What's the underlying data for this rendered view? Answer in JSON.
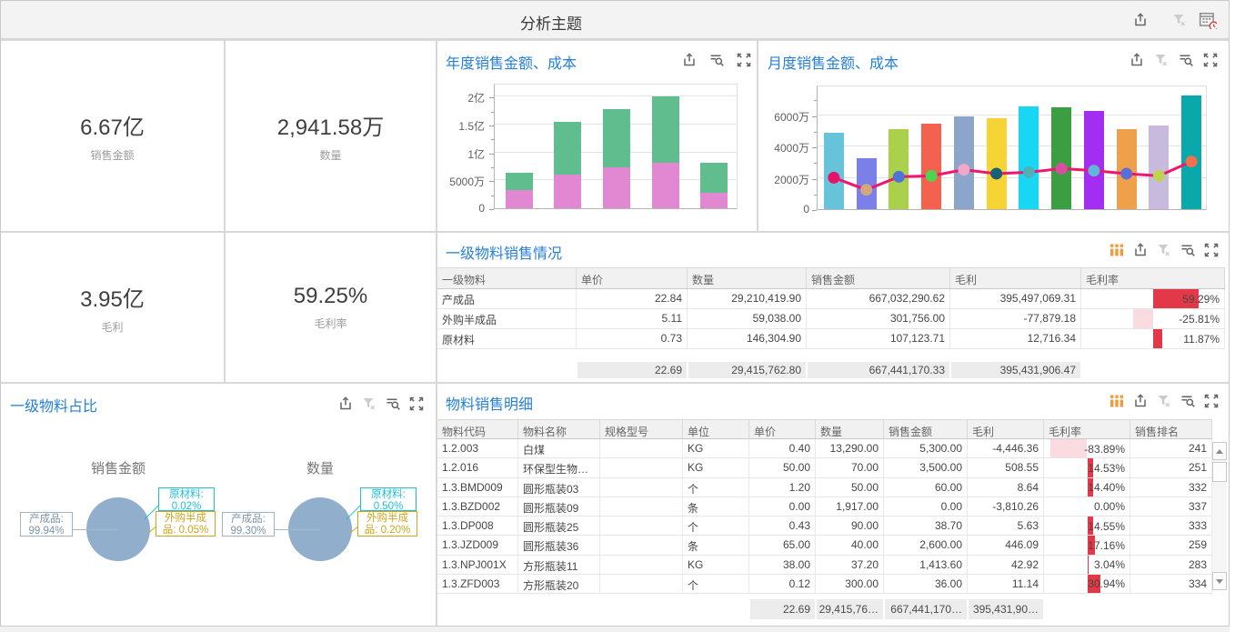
{
  "header": {
    "title": "分析主题"
  },
  "kpis": [
    {
      "value": "6.67亿",
      "label": "销售金额"
    },
    {
      "value": "2,941.58万",
      "label": "数量"
    },
    {
      "value": "3.95亿",
      "label": "毛利"
    },
    {
      "value": "59.25%",
      "label": "毛利率"
    }
  ],
  "chart_data": [
    {
      "type": "stacked-bar",
      "title": "年度销售金额、成本",
      "unit": "亿",
      "ylim": [
        0,
        2.25
      ],
      "yticks": [
        {
          "label": "0",
          "v": 0
        },
        {
          "label": "5000万",
          "v": 0.5
        },
        {
          "label": "1亿",
          "v": 1
        },
        {
          "label": "1.5亿",
          "v": 1.5
        },
        {
          "label": "2亿",
          "v": 2
        }
      ],
      "series": [
        {
          "name": "series-bottom",
          "color": "#e287d2",
          "values": [
            0.32,
            0.6,
            0.74,
            0.82,
            0.28
          ]
        },
        {
          "name": "series-top",
          "color": "#5fbd8e",
          "values": [
            0.32,
            0.94,
            1.03,
            1.19,
            0.53
          ]
        }
      ]
    },
    {
      "type": "bar-line",
      "title": "月度销售金额、成本",
      "unit": "万",
      "ylim": [
        0,
        8000
      ],
      "yticks": [
        {
          "label": "0",
          "v": 0
        },
        {
          "label": "2000万",
          "v": 2000
        },
        {
          "label": "4000万",
          "v": 4000
        },
        {
          "label": "6000万",
          "v": 6000
        }
      ],
      "bars": {
        "values": [
          4890,
          3250,
          5080,
          5470,
          5890,
          5800,
          6570,
          6490,
          6240,
          5100,
          5330,
          7260
        ],
        "colors": [
          "#66c3da",
          "#7a80e8",
          "#abd14c",
          "#f4614f",
          "#8ba6ca",
          "#f7d435",
          "#19d6f4",
          "#3b9e42",
          "#a32ef2",
          "#efa04a",
          "#c8badd",
          "#08a8ab"
        ]
      },
      "line": {
        "color": "#f2156d",
        "values": [
          2120,
          1350,
          2180,
          2240,
          2630,
          2380,
          2470,
          2700,
          2570,
          2380,
          2240,
          3150
        ],
        "dot_colors": [
          "#e8126b",
          "#d4a878",
          "#4f74d9",
          "#4fd44f",
          "#f0a8c8",
          "#1b5e78",
          "#4fb0b8",
          "#d94fa0",
          "#5fb8d8",
          "#5c6cd9",
          "#bcd44f",
          "#f07050"
        ]
      }
    },
    {
      "type": "pie",
      "title": "一级物料占比",
      "pie_color": "#91aecd",
      "pies": [
        {
          "name": "销售金额",
          "slices": [
            {
              "label": "产成品",
              "pct": "99.94%"
            },
            {
              "label": "原材料",
              "pct": "0.02%"
            },
            {
              "label": "外购半成品",
              "pct": "0.05%"
            }
          ]
        },
        {
          "name": "数量",
          "slices": [
            {
              "label": "产成品",
              "pct": "99.30%"
            },
            {
              "label": "原材料",
              "pct": "0.50%"
            },
            {
              "label": "外购半成品",
              "pct": "0.20%"
            }
          ]
        }
      ]
    }
  ],
  "table1": {
    "title": "一级物料销售情况",
    "columns": [
      "一级物料",
      "单价",
      "数量",
      "销售金额",
      "毛利",
      "毛利率"
    ],
    "rows": [
      [
        "产成品",
        "22.84",
        "29,210,419.90",
        "667,032,290.62",
        "395,497,069.31",
        "59.29%"
      ],
      [
        "外购半成品",
        "5.11",
        "59,038.00",
        "301,756.00",
        "-77,879.18",
        "-25.81%"
      ],
      [
        "原材料",
        "0.73",
        "146,304.90",
        "107,123.71",
        "12,716.34",
        "11.87%"
      ]
    ],
    "rate_bars": [
      59.29,
      -25.81,
      11.87
    ],
    "summary": [
      "22.69",
      "29,415,762.80",
      "667,441,170.33",
      "395,431,906.47"
    ]
  },
  "table2": {
    "title": "物料销售明细",
    "columns": [
      "物料代码",
      "物料名称",
      "规格型号",
      "单位",
      "单价",
      "数量",
      "销售金额",
      "毛利",
      "毛利率",
      "销售排名"
    ],
    "rows": [
      [
        "1.2.003",
        "白煤",
        "",
        "KG",
        "0.40",
        "13,290.00",
        "5,300.00",
        "-4,446.36",
        "-83.89%",
        "241"
      ],
      [
        "1.2.016",
        "环保型生物…",
        "",
        "KG",
        "50.00",
        "70.00",
        "3,500.00",
        "508.55",
        "14.53%",
        "251"
      ],
      [
        "1.3.BMD009",
        "圆形瓶装03",
        "",
        "个",
        "1.20",
        "50.00",
        "60.00",
        "8.64",
        "14.40%",
        "332"
      ],
      [
        "1.3.BZD002",
        "圆形瓶装09",
        "",
        "条",
        "0.00",
        "1,917.00",
        "0.00",
        "-3,810.26",
        "0.00%",
        "337"
      ],
      [
        "1.3.DP008",
        "圆形瓶装25",
        "",
        "个",
        "0.43",
        "90.00",
        "38.70",
        "5.63",
        "14.55%",
        "333"
      ],
      [
        "1.3.JZD009",
        "圆形瓶装36",
        "",
        "条",
        "65.00",
        "40.00",
        "2,600.00",
        "446.09",
        "17.16%",
        "259"
      ],
      [
        "1.3.NPJ001X",
        "方形瓶装11",
        "",
        "KG",
        "38.00",
        "37.20",
        "1,413.60",
        "42.92",
        "3.04%",
        "283"
      ],
      [
        "1.3.ZFD003",
        "方形瓶装20",
        "",
        "个",
        "0.12",
        "300.00",
        "36.00",
        "11.14",
        "30.94%",
        "334"
      ]
    ],
    "rate_bars": [
      -83.89,
      14.53,
      14.4,
      0.0,
      14.55,
      17.16,
      3.04,
      30.94
    ],
    "summary": [
      "22.69",
      "29,415,76…",
      "667,441,170…",
      "395,431,90…"
    ]
  },
  "colors": {
    "title_blue": "#2680d9",
    "bar_positive": "#e23848",
    "bar_negative": "#fadbe0",
    "pie_fill": "#91aecd",
    "label_cyan": "#22bfd4",
    "label_gold": "#cfa51c",
    "label_gray": "#8aa0b4"
  }
}
